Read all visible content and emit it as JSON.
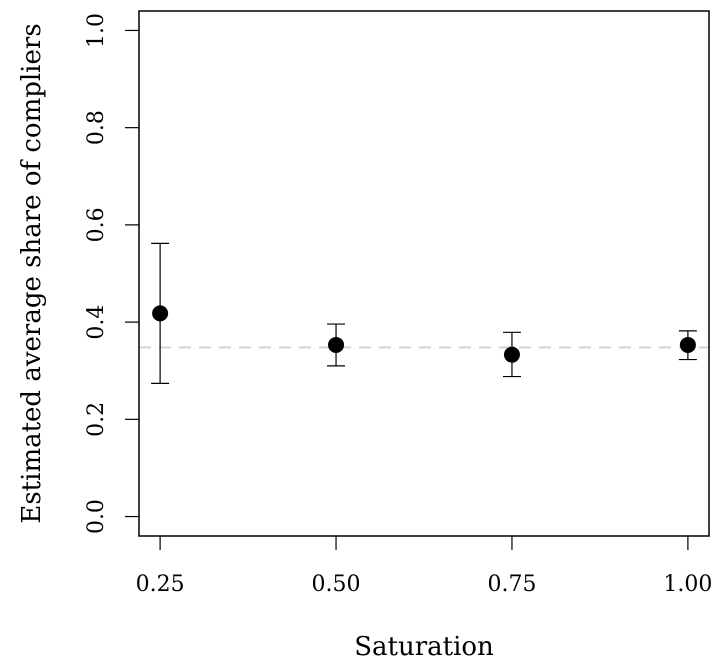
{
  "chart_data": {
    "type": "scatter",
    "title": "",
    "xlabel": "Saturation",
    "ylabel": "Estimated average share of compliers",
    "xlim": [
      0.22,
      1.03
    ],
    "ylim": [
      -0.04,
      1.04
    ],
    "x_ticks": [
      0.25,
      0.5,
      0.75,
      1.0
    ],
    "x_tick_labels": [
      "0.25",
      "0.50",
      "0.75",
      "1.00"
    ],
    "y_ticks": [
      0.0,
      0.2,
      0.4,
      0.6,
      0.8,
      1.0
    ],
    "y_tick_labels": [
      "0.0",
      "0.2",
      "0.4",
      "0.6",
      "0.8",
      "1.0"
    ],
    "grid": false,
    "reference_line": {
      "y": 0.348,
      "style": "dashed",
      "color": "#d3d3d3"
    },
    "points": [
      {
        "x": 0.25,
        "y": 0.418,
        "lower": 0.274,
        "upper": 0.562
      },
      {
        "x": 0.5,
        "y": 0.353,
        "lower": 0.31,
        "upper": 0.396
      },
      {
        "x": 0.75,
        "y": 0.333,
        "lower": 0.288,
        "upper": 0.379
      },
      {
        "x": 1.0,
        "y": 0.353,
        "lower": 0.323,
        "upper": 0.382
      }
    ],
    "colors": {
      "points": "#000000",
      "axis": "#000000"
    }
  }
}
